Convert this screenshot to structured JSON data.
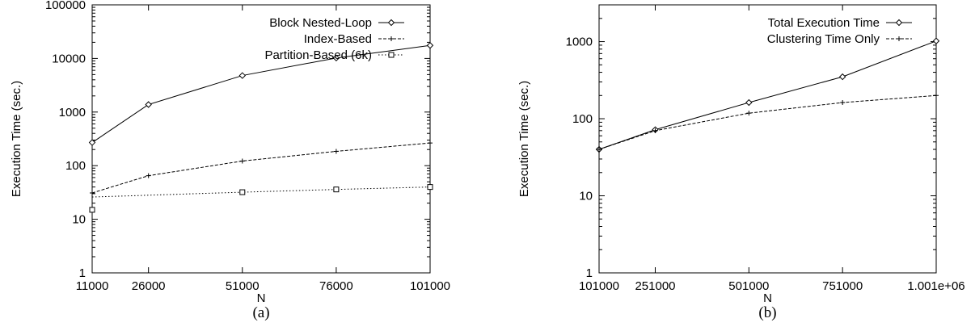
{
  "chart_data": [
    {
      "type": "line",
      "caption": "(a)",
      "xlabel": "N",
      "ylabel": "Execution Time (sec.)",
      "yscale": "log",
      "ylim": [
        1,
        100000
      ],
      "xlim": [
        11000,
        101000
      ],
      "yticks": [
        "1",
        "10",
        "100",
        "1000",
        "10000",
        "100000"
      ],
      "xticks": [
        "11000",
        "26000",
        "51000",
        "76000",
        "101000"
      ],
      "legend_position": "top-right",
      "series": [
        {
          "name": "Block Nested-Loop",
          "marker": "diamond",
          "dash": "solid",
          "x": [
            11000,
            26000,
            51000,
            76000,
            101000
          ],
          "y": [
            270,
            1380,
            4800,
            10200,
            17500
          ]
        },
        {
          "name": "Index-Based",
          "marker": "plus",
          "dash": "dashed",
          "x": [
            11000,
            26000,
            51000,
            76000,
            101000
          ],
          "y": [
            31,
            65,
            122,
            185,
            265
          ]
        },
        {
          "name": "Partition-Based (6k)",
          "marker": "square",
          "dash": "dotted",
          "x": [
            11000,
            51000,
            76000,
            101000
          ],
          "y": [
            15,
            32,
            36,
            40
          ],
          "fit_start": 26
        }
      ]
    },
    {
      "type": "line",
      "caption": "(b)",
      "xlabel": "N",
      "ylabel": "Execution Time (sec.)",
      "yscale": "log",
      "ylim": [
        1,
        3000
      ],
      "xlim": [
        101000,
        1001000
      ],
      "yticks": [
        "1",
        "10",
        "100",
        "1000"
      ],
      "xticks": [
        "101000",
        "251000",
        "501000",
        "751000",
        "1.001e+06"
      ],
      "legend_position": "top-right",
      "series": [
        {
          "name": "Total Execution Time",
          "marker": "diamond",
          "dash": "solid",
          "x": [
            101000,
            251000,
            501000,
            751000,
            1001000
          ],
          "y": [
            40,
            72,
            162,
            350,
            1020
          ]
        },
        {
          "name": "Clustering Time Only",
          "marker": "plus",
          "dash": "dashed",
          "x": [
            101000,
            251000,
            501000,
            751000,
            1001000
          ],
          "y": [
            40,
            70,
            118,
            162,
            200
          ]
        }
      ]
    }
  ]
}
